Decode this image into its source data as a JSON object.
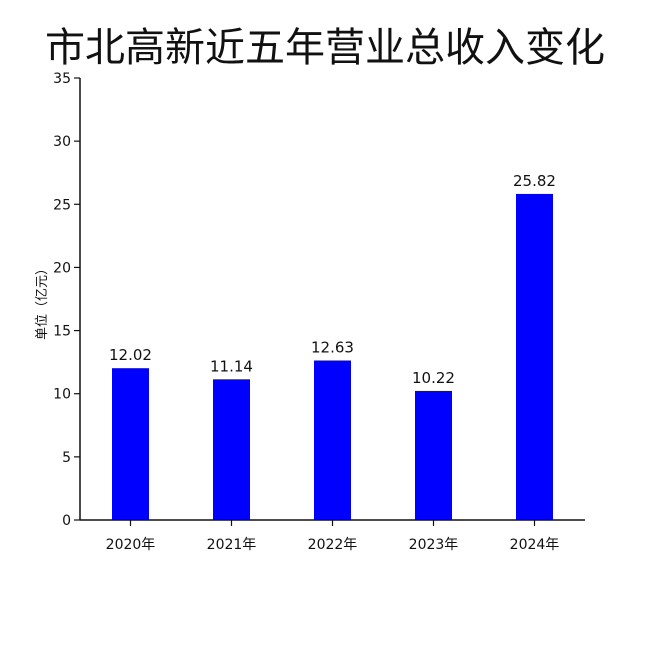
{
  "chart_data": {
    "type": "bar",
    "title": "市北高新近五年营业总收入变化",
    "xlabel": "",
    "ylabel": "单位（亿元）",
    "categories": [
      "2020年",
      "2021年",
      "2022年",
      "2023年",
      "2024年"
    ],
    "values": [
      12.02,
      11.14,
      12.63,
      10.22,
      25.82
    ],
    "value_labels": [
      "12.02",
      "11.14",
      "12.63",
      "10.22",
      "25.82"
    ],
    "ylim": [
      0,
      35
    ],
    "yticks": [
      0,
      5,
      10,
      15,
      20,
      25,
      30,
      35
    ],
    "bar_color": "#0000ff",
    "grid": false,
    "legend": "none"
  }
}
